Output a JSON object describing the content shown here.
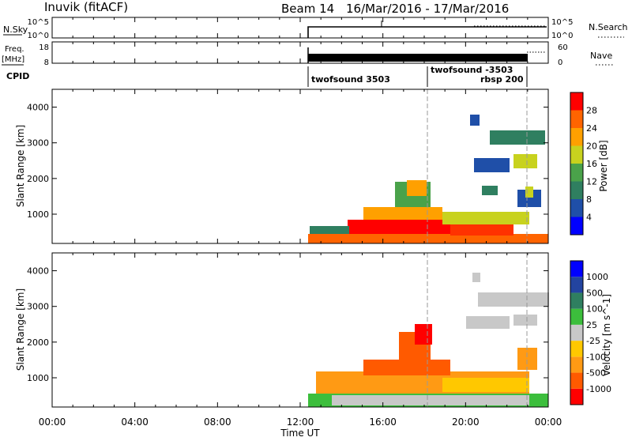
{
  "header": {
    "station": "Inuvik (fitACF)",
    "beam": "Beam 14",
    "dates": "16/Mar/2016 - 17/Mar/2016"
  },
  "noise_panel": {
    "left_label": "N.Sky",
    "left_ticks": [
      "10^5",
      "10^0"
    ],
    "right_ticks": [
      "10^5",
      "10^0"
    ],
    "right_label": "N.Search"
  },
  "freq_panel": {
    "left_label_1": "Freq.",
    "left_label_2": "[MHz]",
    "left_ticks": [
      "18",
      "8"
    ],
    "right_ticks": [
      "60",
      "0"
    ],
    "right_label": "Nave"
  },
  "cpid_panel": {
    "label": "CPID",
    "segments": [
      "twofsound 3503",
      "twofsound -3503",
      "rbsp 200"
    ]
  },
  "colors": {
    "power_scale": [
      "#0000ff",
      "#1f4fa8",
      "#2f7f60",
      "#4aa24a",
      "#c8d21e",
      "#ffa000",
      "#ff6400",
      "#ff0000"
    ],
    "velocity_scale": [
      "#ff0000",
      "#ff5a00",
      "#ff9a14",
      "#ffc800",
      "#c8c8c8",
      "#3cbe3c",
      "#2f7f60",
      "#2344a0",
      "#0000ff"
    ]
  },
  "chart_data": [
    {
      "type": "heatmap",
      "title": "Power",
      "ylabel": "Slant Range [km]",
      "yticks": [
        "1000",
        "2000",
        "3000",
        "4000"
      ],
      "ylim": [
        180,
        4500
      ],
      "xlim_hours": [
        0,
        24
      ],
      "colorbar": {
        "label": "Power [dB]",
        "ticks": [
          "4",
          "8",
          "12",
          "16",
          "20",
          "24",
          "28"
        ],
        "range": [
          0,
          30
        ]
      },
      "echo_regions": [
        {
          "t_hours": [
            12.0,
            24.0
          ],
          "range_km": [
            180,
            900
          ],
          "value": "20-30 dB"
        },
        {
          "t_hours": [
            15.0,
            17.5
          ],
          "range_km": [
            900,
            2000
          ],
          "value": "10-24 dB"
        },
        {
          "t_hours": [
            20.0,
            24.0
          ],
          "range_km": [
            2000,
            3300
          ],
          "value": "4-20 dB"
        }
      ]
    },
    {
      "type": "heatmap",
      "title": "Velocity",
      "ylabel": "Slant Range [km]",
      "yticks": [
        "1000",
        "2000",
        "3000",
        "4000"
      ],
      "ylim": [
        180,
        4500
      ],
      "xlim_hours": [
        0,
        24
      ],
      "colorbar": {
        "label": "Velocity [m s^-1]",
        "ticks": [
          "1000",
          "500",
          "100",
          "25",
          "-25",
          "-100",
          "-500",
          "-1000"
        ],
        "range": [
          -1200,
          1200
        ]
      },
      "echo_regions": [
        {
          "t_hours": [
            12.0,
            24.0
          ],
          "range_km": [
            180,
            900
          ],
          "value": "-500 to -100 m/s"
        },
        {
          "t_hours": [
            15.0,
            17.5
          ],
          "range_km": [
            900,
            2000
          ],
          "value": "-1000 to -500 m/s"
        },
        {
          "t_hours": [
            20.0,
            24.0
          ],
          "range_km": [
            2000,
            3300
          ],
          "value": "-25 to 25 m/s (ground scatter)"
        }
      ]
    }
  ],
  "x_axis": {
    "tick_labels": [
      "00:00",
      "04:00",
      "08:00",
      "12:00",
      "16:00",
      "20:00",
      "00:00"
    ],
    "label": "Time UT"
  }
}
